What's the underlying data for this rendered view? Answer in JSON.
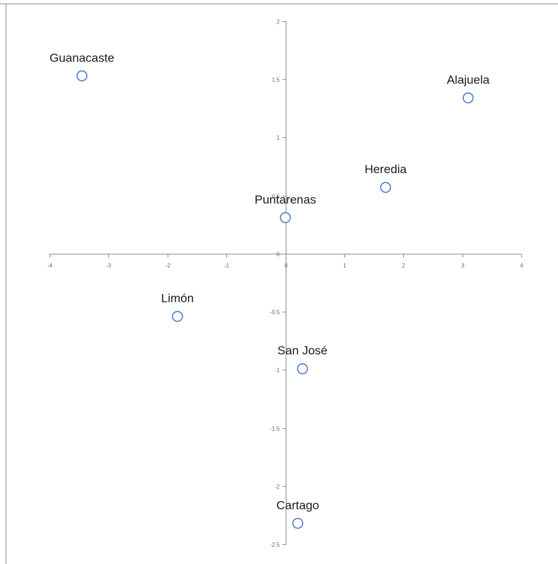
{
  "chart_data": {
    "type": "scatter",
    "title": "",
    "xlabel": "",
    "ylabel": "",
    "xlim": [
      -4,
      4
    ],
    "ylim": [
      -2.5,
      2
    ],
    "x_ticks": [
      -4,
      -3,
      -2,
      -1,
      0,
      1,
      2,
      3,
      4
    ],
    "y_ticks": [
      2,
      1.5,
      1,
      0.5,
      0,
      -0.5,
      -1,
      -1.5,
      -2,
      -2.5
    ],
    "x_tick_labels": [
      "-4",
      "-3",
      "-2",
      "-1",
      "0",
      "1",
      "2",
      "3",
      "4"
    ],
    "y_tick_labels": [
      "2",
      "1.5",
      "1",
      "0.5",
      "0",
      "-0.5",
      "-1",
      "-1.5",
      "-2",
      "-2.5"
    ],
    "grid": false,
    "legend": false,
    "marker_color": "#4f7fc7",
    "points": [
      {
        "label": "Guanacaste",
        "x": -3.45,
        "y": 1.53
      },
      {
        "label": "Alajuela",
        "x": 3.1,
        "y": 1.34
      },
      {
        "label": "Heredia",
        "x": 1.7,
        "y": 0.57
      },
      {
        "label": "Puntarenas",
        "x": 0.0,
        "y": 0.31
      },
      {
        "label": "Limón",
        "x": -1.83,
        "y": -0.54
      },
      {
        "label": "San José",
        "x": 0.29,
        "y": -0.99
      },
      {
        "label": "Cartago",
        "x": 0.21,
        "y": -2.32
      }
    ]
  }
}
